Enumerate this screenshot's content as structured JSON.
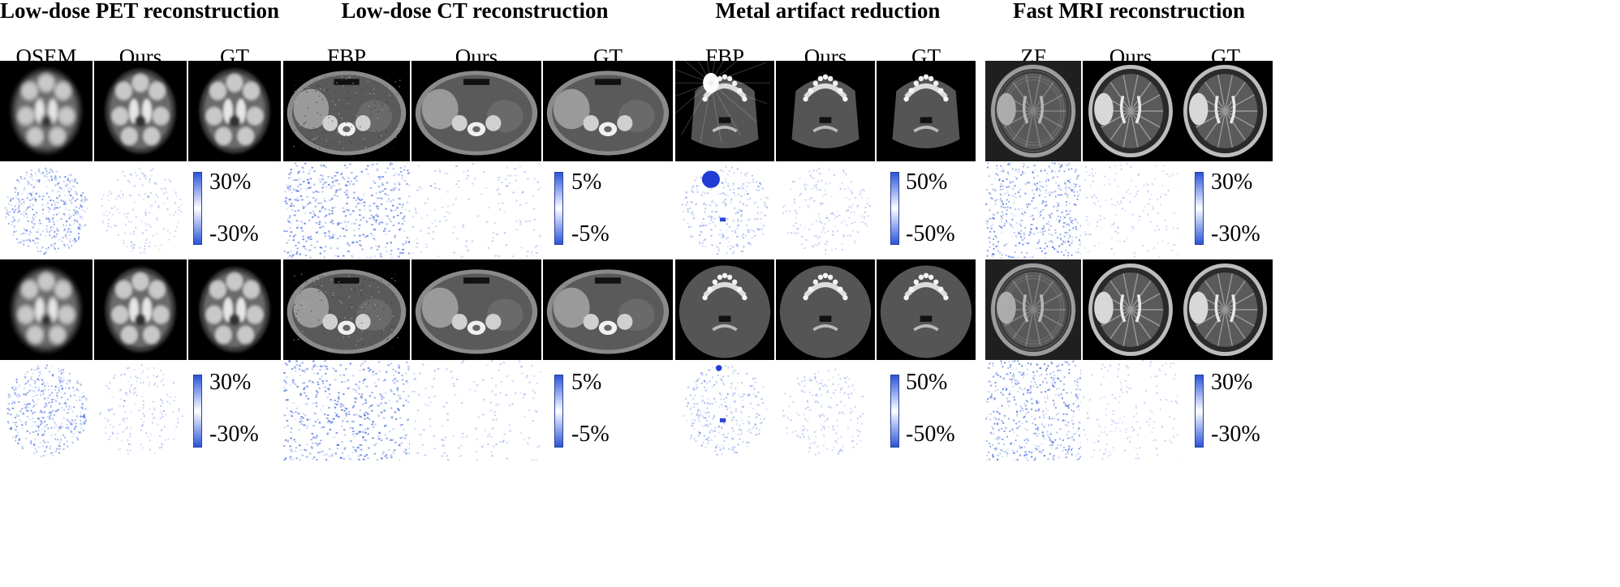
{
  "groups": [
    {
      "title": "Low-dose PET reconstruction",
      "columns": [
        "OSEM",
        "Ours",
        "GT"
      ],
      "colorbar_top": "30%",
      "colorbar_bottom": "-30%",
      "image_kind": "pet-brain"
    },
    {
      "title": "Low-dose CT reconstruction",
      "columns": [
        "FBP",
        "Ours",
        "GT"
      ],
      "colorbar_top": "5%",
      "colorbar_bottom": "-5%",
      "image_kind": "ct-abdomen"
    },
    {
      "title": "Metal artifact reduction",
      "columns": [
        "FBP",
        "Ours",
        "GT"
      ],
      "colorbar_top": "50%",
      "colorbar_bottom": "-50%",
      "image_kind": "ct-jaw"
    },
    {
      "title": "Fast MRI reconstruction",
      "columns": [
        "ZF",
        "Ours",
        "GT"
      ],
      "colorbar_top": "30%",
      "colorbar_bottom": "-30%",
      "image_kind": "mri-brain"
    }
  ],
  "colors": {
    "error_map": "#2a55d8",
    "scan_background": "#000000"
  }
}
